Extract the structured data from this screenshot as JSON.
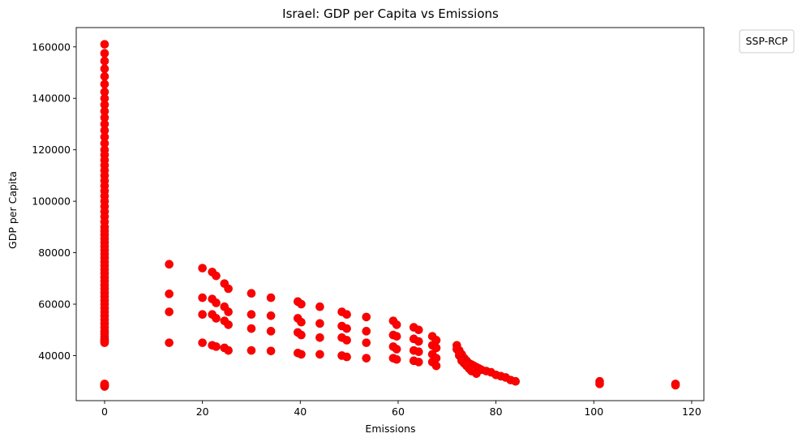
{
  "chart_data": {
    "type": "scatter",
    "title": "Israel: GDP per Capita vs Emissions",
    "xlabel": "Emissions",
    "ylabel": "GDP per Capita",
    "xlim": [
      -5.8,
      122.5
    ],
    "ylim": [
      22500,
      167500
    ],
    "xticks": [
      0,
      20,
      40,
      60,
      80,
      100,
      120
    ],
    "yticks": [
      40000,
      60000,
      80000,
      100000,
      120000,
      140000,
      160000
    ],
    "xtick_labels": [
      "0",
      "20",
      "40",
      "60",
      "80",
      "100",
      "120"
    ],
    "ytick_labels": [
      "40000",
      "60000",
      "80000",
      "100000",
      "120000",
      "140000",
      "160000"
    ],
    "grid": false,
    "legend": {
      "title": "SSP-RCP",
      "placement": "outside-top-right",
      "entries": []
    },
    "marker_color": "#ff0000",
    "series": [
      {
        "color": "#ff0000",
        "x": [
          0,
          0,
          0,
          0,
          0,
          0,
          0,
          0,
          0,
          0,
          0,
          0,
          0,
          0,
          0,
          0,
          0,
          0,
          0,
          0,
          0,
          0,
          0,
          0,
          0,
          0,
          0,
          0,
          0,
          0,
          0,
          0,
          0,
          0,
          0,
          0,
          0,
          0,
          0,
          0,
          0,
          0,
          0,
          0,
          0,
          0,
          0,
          0,
          0,
          0,
          0,
          0,
          0,
          0,
          0,
          0,
          0,
          0,
          0,
          0,
          0,
          0,
          0,
          0,
          0,
          0,
          0,
          0,
          0,
          13.2,
          13.2,
          13.2,
          13.2,
          20,
          20,
          20,
          20,
          22,
          22,
          22,
          22,
          22.8,
          22.8,
          22.8,
          22.8,
          24.5,
          24.5,
          24.5,
          24.5,
          25.3,
          25.3,
          25.3,
          25.3,
          30,
          30,
          30,
          30,
          34,
          34,
          34,
          34,
          39.5,
          39.5,
          39.5,
          39.5,
          40.2,
          40.2,
          40.2,
          40.2,
          44,
          44,
          44,
          44,
          48.5,
          48.5,
          48.5,
          48.5,
          49.5,
          49.5,
          49.5,
          49.5,
          53.5,
          53.5,
          53.5,
          53.5,
          59,
          59,
          59,
          59,
          59.7,
          59.7,
          59.7,
          59.7,
          63.2,
          63.2,
          63.2,
          63.2,
          64.2,
          64.2,
          64.2,
          64.2,
          67,
          67,
          67,
          67,
          67.8,
          67.8,
          67.8,
          67.8,
          72,
          72.5,
          73,
          73.5,
          74,
          74.5,
          75,
          75.5,
          76,
          76.5,
          77,
          78,
          79,
          80,
          81,
          82,
          83,
          84,
          72,
          72.5,
          73,
          73.5,
          74,
          74.5,
          75,
          76,
          72.5,
          73,
          74,
          75,
          101.2,
          101.2,
          116.7,
          116.7
        ],
        "y": [
          161000,
          157500,
          154500,
          151500,
          148500,
          145500,
          142500,
          140000,
          137500,
          135000,
          132500,
          130000,
          127500,
          125000,
          122500,
          120000,
          118000,
          116000,
          114000,
          112000,
          110000,
          108000,
          106000,
          104000,
          102000,
          100000,
          98000,
          96000,
          94000,
          92000,
          90000,
          88500,
          87000,
          85500,
          84000,
          82500,
          81000,
          79500,
          78000,
          76500,
          75000,
          73500,
          72000,
          70500,
          69000,
          67500,
          66000,
          64500,
          63000,
          61500,
          60000,
          58500,
          57000,
          55500,
          54000,
          52500,
          51000,
          49500,
          48500,
          47500,
          46500,
          46000,
          45500,
          45000,
          28000,
          28200,
          28500,
          28800,
          29000,
          75500,
          64000,
          57000,
          45000,
          74000,
          62500,
          56000,
          45000,
          72500,
          62000,
          56000,
          44000,
          71000,
          60500,
          54500,
          43500,
          68000,
          59000,
          53500,
          43000,
          66000,
          57000,
          52000,
          42000,
          64200,
          56000,
          50500,
          42000,
          62500,
          55500,
          49500,
          41800,
          61000,
          54500,
          49000,
          41000,
          60000,
          53000,
          48000,
          40500,
          59000,
          52500,
          47000,
          40500,
          57000,
          51500,
          47000,
          40000,
          56000,
          50500,
          46000,
          39500,
          55000,
          49500,
          45000,
          39000,
          53500,
          48000,
          43500,
          39000,
          52000,
          47500,
          42500,
          38500,
          51000,
          46500,
          42000,
          38000,
          50000,
          45500,
          41500,
          37500,
          47500,
          44000,
          40500,
          37500,
          46000,
          43000,
          39000,
          36000,
          44000,
          42000,
          40500,
          39000,
          38000,
          37000,
          36500,
          36000,
          35500,
          35000,
          34500,
          34000,
          33500,
          32500,
          32000,
          31500,
          30500,
          30000,
          42500,
          40000,
          38500,
          37000,
          36000,
          35000,
          34000,
          33000,
          41000,
          38000,
          36500,
          35000,
          30000,
          29000,
          29000,
          28500
        ]
      }
    ]
  }
}
